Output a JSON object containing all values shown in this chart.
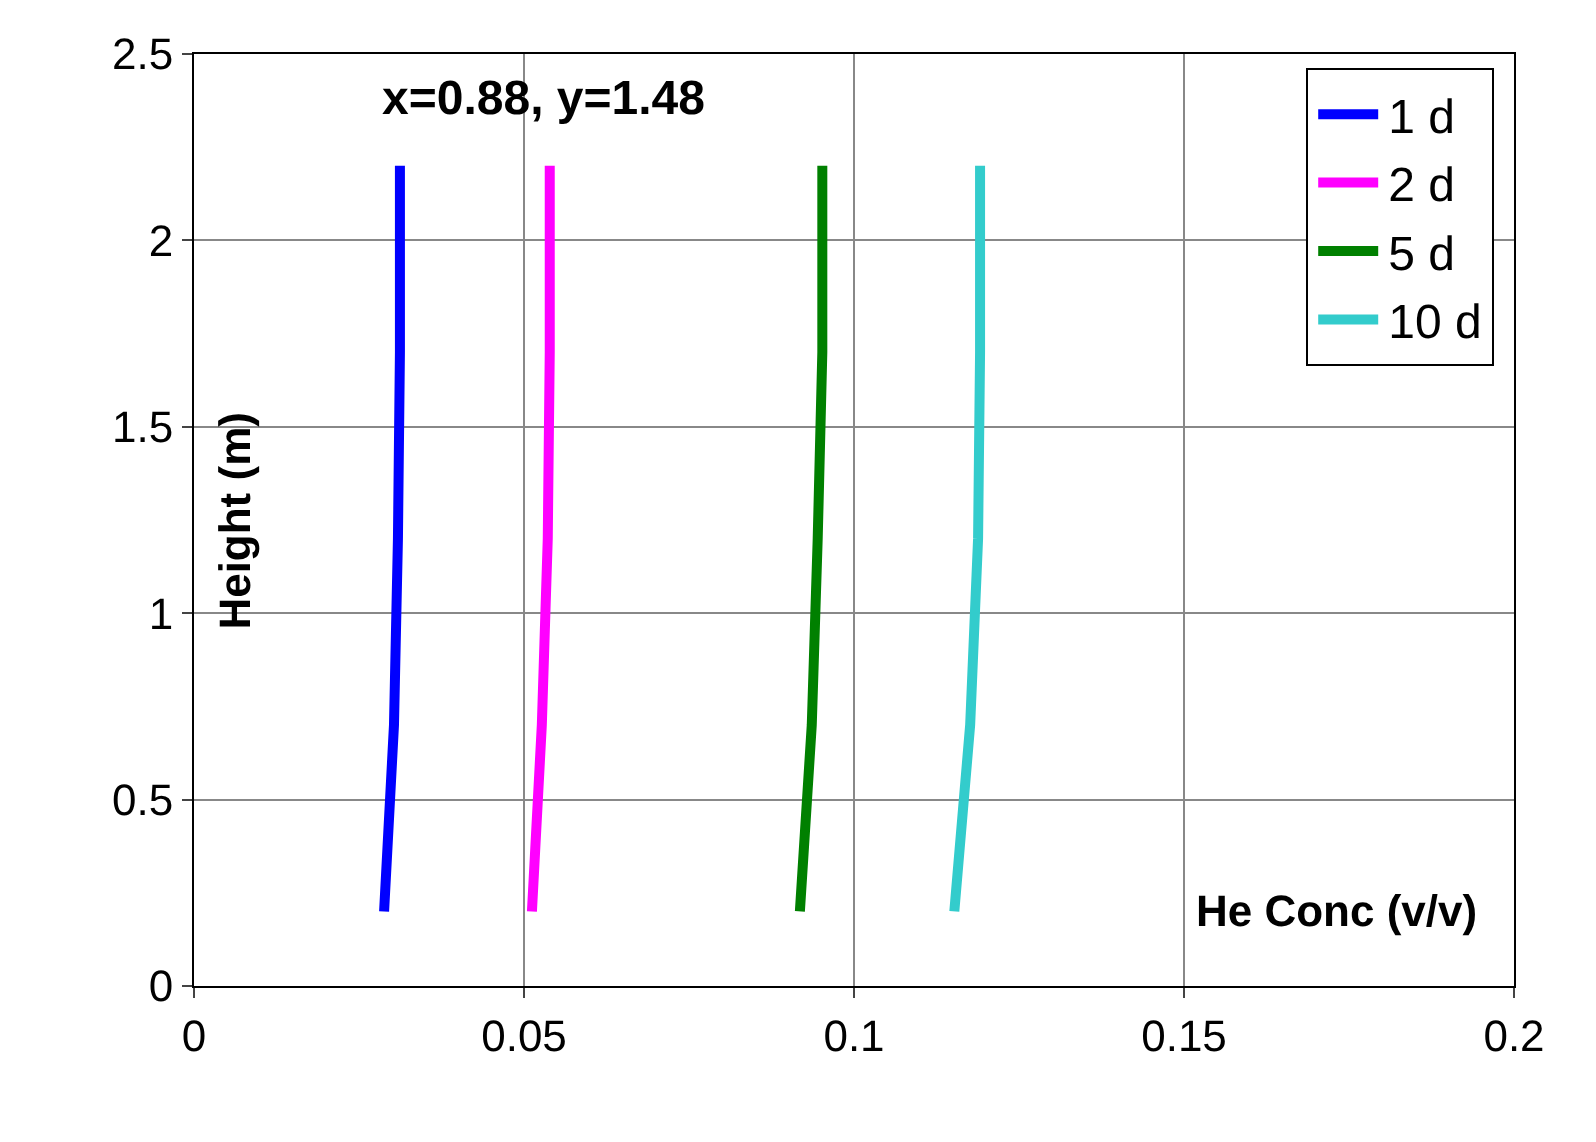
{
  "chart_data": {
    "type": "line",
    "xlabel": "He Conc (v/v)",
    "ylabel": "Height (m)",
    "annotations": [
      "x=0.88, y=1.48"
    ],
    "series": [
      {
        "name": "1 d",
        "color": "#0000ff",
        "x": [
          0.0288,
          0.0303,
          0.0309,
          0.0312,
          0.0312
        ],
        "values": [
          0.2,
          0.7,
          1.2,
          1.7,
          2.2
        ]
      },
      {
        "name": "2 d",
        "color": "#ff00ff",
        "x": [
          0.0512,
          0.0527,
          0.0536,
          0.0539,
          0.0539
        ],
        "values": [
          0.2,
          0.7,
          1.2,
          1.7,
          2.2
        ]
      },
      {
        "name": "5 d",
        "color": "#008000",
        "x": [
          0.0918,
          0.0936,
          0.0945,
          0.0952,
          0.0952
        ],
        "values": [
          0.2,
          0.7,
          1.2,
          1.7,
          2.2
        ]
      },
      {
        "name": "10 d",
        "color": "#33cccc",
        "x": [
          0.1152,
          0.1176,
          0.1188,
          0.1191,
          0.1191
        ],
        "values": [
          0.2,
          0.7,
          1.2,
          1.7,
          2.2
        ]
      }
    ],
    "xlim": [
      0,
      0.2
    ],
    "xticks": [
      0,
      0.05,
      0.1,
      0.15,
      0.2
    ],
    "ylim": [
      0,
      2.5
    ],
    "yticks": [
      0,
      0.5,
      1,
      1.5,
      2,
      2.5
    ],
    "grid": true,
    "legend": "top right",
    "marker": "none",
    "line_style": "solid"
  }
}
